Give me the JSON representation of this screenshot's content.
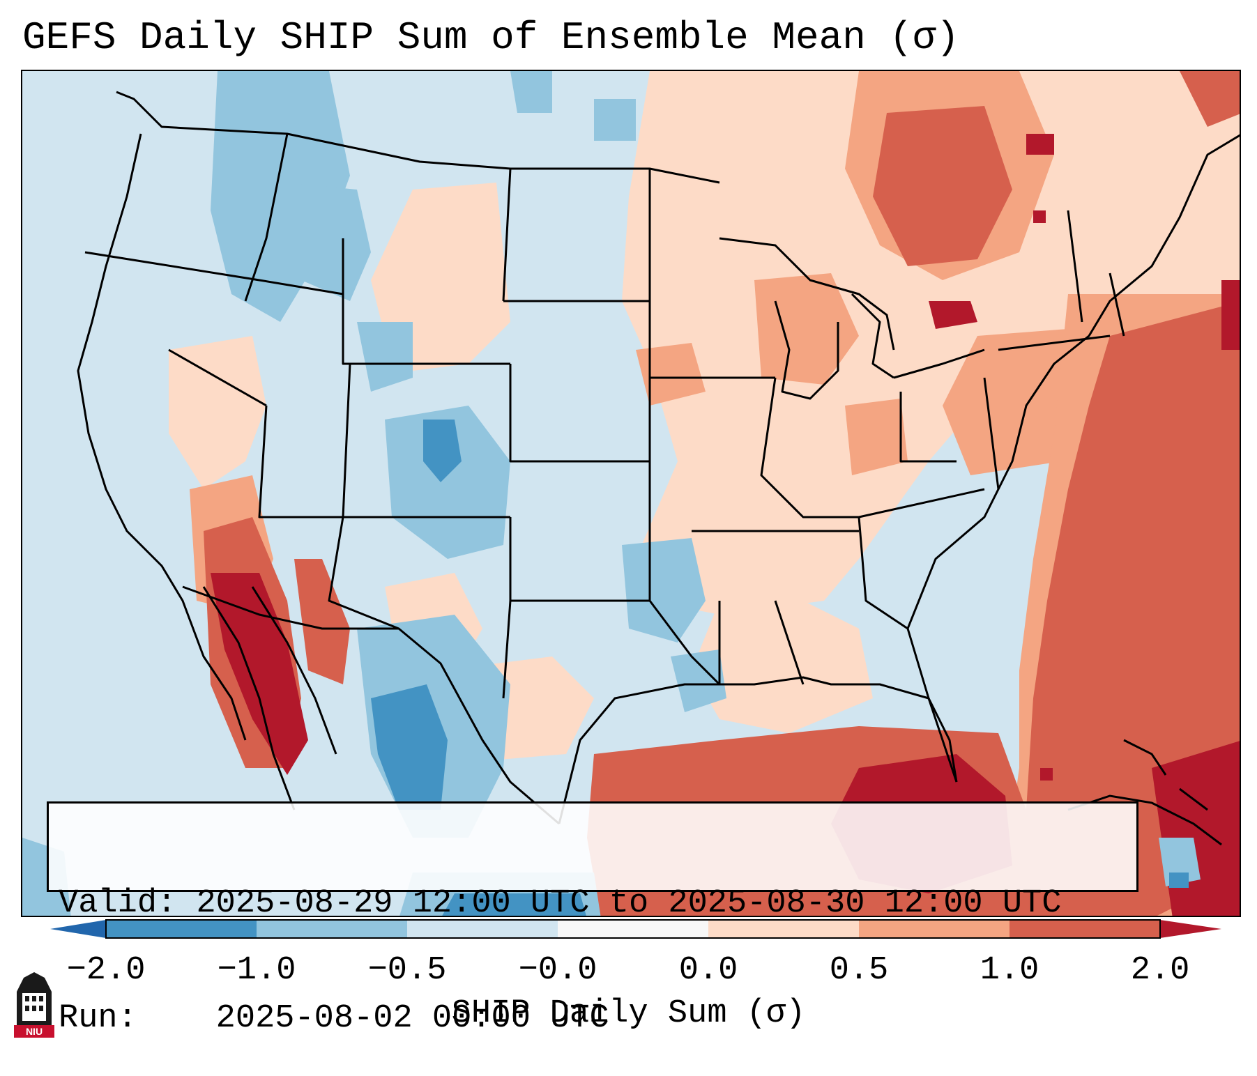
{
  "title": "GEFS Daily SHIP Sum of Ensemble Mean (σ)",
  "info": {
    "valid_label": "Valid:",
    "valid_value": "2025-08-29 12:00 UTC to 2025-08-30 12:00 UTC",
    "run_label": "Run:",
    "run_value": "2025-08-02 00:00 UTC"
  },
  "colorbar": {
    "label": "SHIP Daily Sum (σ)",
    "ticks": [
      "−2.0",
      "−1.0",
      "−0.5",
      "−0.0",
      "0.0",
      "0.5",
      "1.0",
      "2.0"
    ],
    "colors": [
      "#2166ac",
      "#4393c3",
      "#92c5de",
      "#d1e5f0",
      "#f7f7f7",
      "#fddbc7",
      "#f4a582",
      "#d6604d",
      "#b2182b"
    ]
  },
  "logo": {
    "text": "NIU"
  },
  "map": {
    "ocean_color": "#d1e5f0",
    "boundary_color": "#000000"
  }
}
